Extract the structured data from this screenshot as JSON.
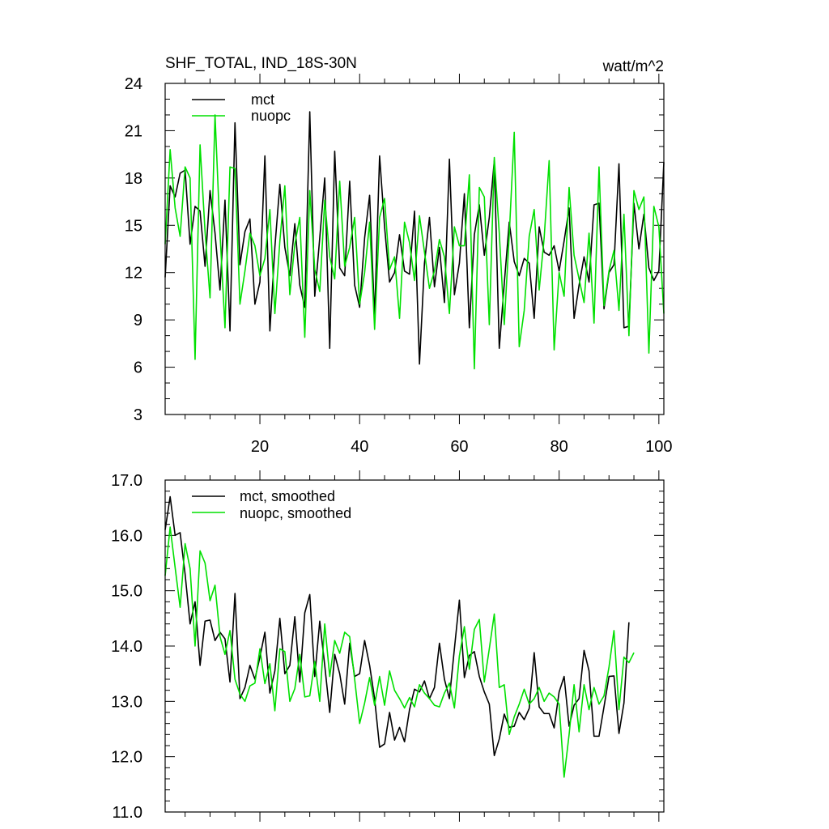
{
  "chart_data": [
    {
      "type": "line",
      "title": "SHF_TOTAL, IND_18S-30N",
      "units": "watt/m^2",
      "xlabel": "",
      "ylabel": "",
      "xlim": [
        1,
        101
      ],
      "ylim": [
        3,
        24
      ],
      "x_ticks": [
        20,
        40,
        60,
        80,
        100
      ],
      "x_tick_labels": [
        "20",
        "40",
        "60",
        "80",
        "100"
      ],
      "y_ticks": [
        3,
        6,
        9,
        12,
        15,
        18,
        21,
        24
      ],
      "y_tick_labels": [
        "3",
        "6",
        "9",
        "12",
        "15",
        "18",
        "21",
        "24"
      ],
      "legend": "top-left",
      "series": [
        {
          "name": "mct",
          "color": "#000000",
          "x_start": 1,
          "values": [
            11.7,
            17.5,
            16.8,
            18.3,
            18.5,
            13.8,
            16.2,
            15.9,
            12.4,
            17.2,
            14.5,
            10.9,
            16.6,
            8.3,
            21.5,
            12.5,
            14.6,
            15.4,
            10.0,
            11.4,
            19.4,
            8.3,
            13.6,
            17.6,
            13.6,
            11.8,
            15.1,
            11.2,
            9.8,
            22.2,
            10.5,
            14.2,
            18.0,
            7.2,
            19.7,
            12.3,
            11.8,
            17.8,
            11.2,
            9.8,
            14.2,
            16.9,
            9.2,
            19.4,
            14.9,
            11.4,
            12.0,
            14.4,
            12.1,
            11.9,
            15.9,
            6.2,
            12.6,
            15.5,
            11.1,
            13.6,
            10.1,
            19.2,
            10.6,
            12.6,
            17.0,
            8.5,
            14.4,
            16.3,
            13.1,
            15.5,
            19.1,
            7.2,
            11.3,
            15.2,
            12.7,
            11.8,
            12.9,
            12.6,
            9.1,
            14.9,
            13.3,
            13.1,
            13.7,
            12.1,
            14.0,
            16.1,
            9.1,
            11.2,
            13.0,
            11.4,
            16.3,
            16.4,
            9.7,
            12.0,
            12.5,
            18.9,
            8.5,
            8.6,
            16.4,
            13.5,
            15.7,
            12.3,
            11.5,
            12.1,
            19.0
          ]
        },
        {
          "name": "nuopc",
          "color": "#00e000",
          "x_start": 1,
          "values": [
            13.8,
            19.8,
            16.1,
            14.3,
            18.7,
            18.0,
            6.5,
            20.1,
            14.6,
            10.4,
            22.0,
            14.5,
            8.5,
            18.7,
            18.6,
            10.0,
            12.1,
            14.5,
            13.7,
            11.8,
            12.9,
            16.0,
            9.4,
            14.0,
            17.5,
            10.6,
            13.8,
            15.5,
            7.9,
            17.2,
            12.2,
            10.8,
            16.6,
            13.0,
            11.6,
            17.8,
            12.4,
            13.6,
            15.5,
            10.0,
            12.0,
            15.2,
            8.4,
            15.5,
            16.7,
            12.2,
            13.0,
            9.1,
            15.2,
            13.9,
            11.5,
            15.6,
            13.3,
            11.0,
            12.1,
            14.1,
            13.0,
            9.4,
            14.9,
            13.7,
            13.7,
            18.2,
            5.9,
            17.4,
            16.8,
            8.7,
            19.3,
            14.5,
            8.7,
            14.4,
            20.9,
            7.3,
            9.6,
            14.3,
            16.0,
            10.9,
            14.2,
            19.1,
            7.1,
            12.0,
            10.5,
            17.4,
            13.1,
            11.6,
            10.1,
            14.5,
            8.8,
            18.7,
            9.9,
            12.1,
            13.4,
            9.6,
            15.7,
            8.0,
            17.2,
            16.0,
            16.8,
            6.9,
            16.2,
            14.9,
            9.4
          ]
        }
      ]
    },
    {
      "type": "line",
      "title": "",
      "xlabel": "",
      "ylabel": "",
      "xlim": [
        1,
        101
      ],
      "ylim": [
        11.0,
        17.0
      ],
      "x_ticks": [
        20,
        40,
        60,
        80,
        100
      ],
      "y_ticks": [
        11.0,
        12.0,
        13.0,
        14.0,
        15.0,
        16.0,
        17.0
      ],
      "y_tick_labels": [
        "11.0",
        "12.0",
        "13.0",
        "14.0",
        "15.0",
        "16.0",
        "17.0"
      ],
      "legend": "top-left",
      "series": [
        {
          "name": "mct, smoothed",
          "color": "#000000",
          "x_start": 1,
          "values": [
            16.1,
            16.7,
            16.0,
            16.05,
            15.3,
            14.4,
            14.8,
            13.65,
            14.45,
            14.47,
            14.1,
            14.25,
            14.13,
            13.35,
            14.95,
            13.05,
            13.25,
            13.65,
            13.4,
            13.8,
            14.25,
            13.15,
            13.55,
            14.5,
            13.5,
            13.65,
            14.53,
            13.35,
            14.6,
            14.93,
            13.45,
            14.45,
            13.65,
            12.8,
            13.85,
            13.5,
            12.95,
            14.05,
            13.45,
            13.5,
            14.1,
            13.65,
            13.05,
            12.17,
            12.23,
            12.8,
            12.3,
            12.53,
            12.27,
            12.85,
            13.22,
            13.17,
            13.37,
            13.05,
            13.25,
            14.05,
            13.4,
            13.05,
            13.95,
            14.83,
            13.43,
            13.83,
            13.9,
            13.45,
            13.17,
            12.95,
            12.02,
            12.32,
            12.77,
            12.53,
            12.55,
            12.8,
            12.67,
            12.87,
            13.88,
            12.9,
            12.78,
            12.78,
            12.52,
            13.17,
            13.45,
            12.55,
            12.93,
            13.05,
            13.92,
            13.55,
            12.37,
            12.37,
            12.9,
            13.45,
            13.46,
            12.42,
            12.97,
            14.43
          ]
        },
        {
          "name": "nuopc, smoothed",
          "color": "#00e000",
          "x_start": 1,
          "values": [
            15.27,
            16.15,
            15.42,
            14.7,
            15.85,
            15.4,
            14.0,
            15.72,
            15.5,
            14.82,
            15.1,
            14.17,
            13.85,
            14.28,
            13.4,
            13.13,
            13.0,
            13.28,
            13.33,
            13.95,
            13.32,
            13.68,
            12.83,
            13.95,
            13.9,
            13.0,
            13.23,
            13.85,
            13.08,
            13.1,
            13.72,
            13.0,
            14.4,
            13.45,
            14.1,
            13.87,
            14.25,
            14.17,
            13.4,
            12.6,
            12.97,
            13.43,
            12.93,
            13.45,
            12.93,
            13.55,
            13.2,
            13.05,
            12.88,
            13.07,
            12.9,
            13.3,
            13.15,
            13.05,
            12.93,
            12.9,
            13.15,
            13.33,
            12.88,
            13.82,
            14.35,
            13.58,
            14.3,
            14.48,
            13.35,
            13.95,
            14.58,
            13.25,
            13.3,
            12.4,
            12.72,
            12.95,
            13.22,
            12.95,
            13.05,
            13.25,
            13.0,
            13.15,
            13.08,
            12.95,
            11.63,
            12.4,
            13.3,
            12.45,
            13.3,
            12.85,
            13.25,
            12.95,
            13.1,
            13.62,
            14.28,
            12.85,
            13.8,
            13.7,
            13.88
          ]
        }
      ]
    }
  ]
}
